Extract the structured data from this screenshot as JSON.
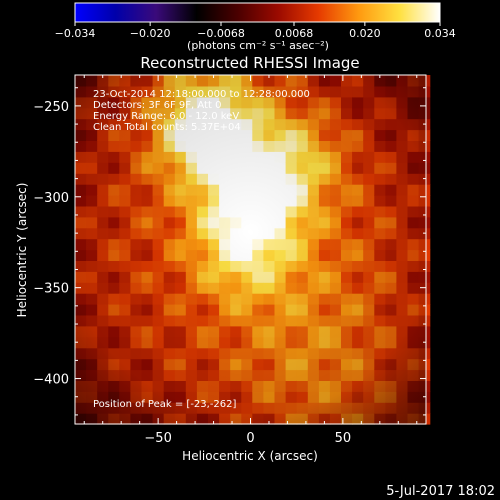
{
  "chart_data": {
    "type": "heatmap",
    "title": "Reconstructed RHESSI Image",
    "xlabel": "Heliocentric X (arcsec)",
    "ylabel": "Heliocentric Y (arcsec)",
    "xlim": [
      -95,
      95
    ],
    "ylim": [
      -425,
      -233
    ],
    "xticks": [
      -50,
      0,
      50
    ],
    "yticks": [
      -250,
      -300,
      -350,
      -400
    ],
    "colorbar": {
      "range": [
        -0.034,
        0.034
      ],
      "ticks": [
        "−0.034",
        "−0.020",
        "−0.0068",
        "0.0068",
        "0.020",
        "0.034"
      ],
      "tick_values": [
        -0.034,
        -0.02,
        -0.0068,
        0.0068,
        0.02,
        0.034
      ],
      "units_label": "(photons cm⁻² s⁻¹ asec⁻²)",
      "colormap": [
        "#0000ff",
        "#0000aa",
        "#3a0a7a",
        "#000000",
        "#4a0000",
        "#9a0a00",
        "#e63a00",
        "#ff9a10",
        "#ffe040",
        "#ffffff"
      ]
    },
    "annotations": [
      "23-Oct-2014 12:18:00.000 to 12:28:00.000",
      "Detectors: 3F 6F 9F, Att 0",
      "Energy Range: 6.0 - 12.0 keV",
      "Clean    Total counts: 5.37E+04"
    ],
    "peak_label": "Position of Peak = [-23,-262]",
    "peak": [
      -23,
      -262
    ],
    "sources": [
      {
        "x": -23,
        "y": -262,
        "level": 0.034
      },
      {
        "x": 2,
        "y": -300,
        "level": 0.03
      },
      {
        "x": -5,
        "y": -330,
        "level": 0.022
      },
      {
        "x": 25,
        "y": -278,
        "level": 0.02
      }
    ]
  },
  "footer": {
    "date": "5-Jul-2017 18:02"
  }
}
